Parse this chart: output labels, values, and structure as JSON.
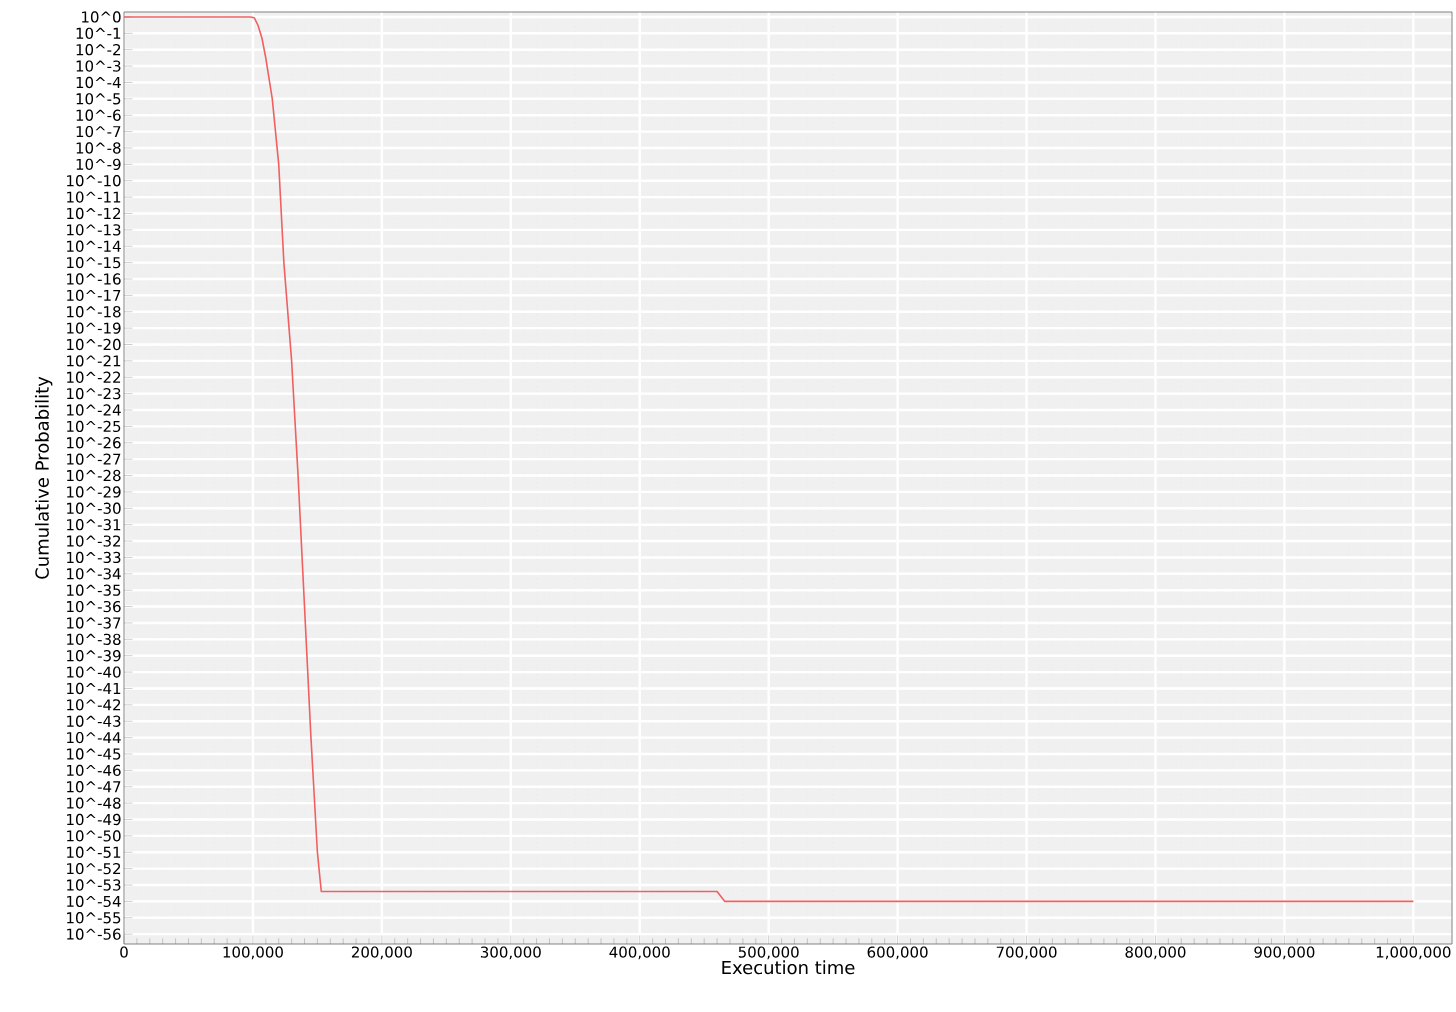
{
  "chart_data": {
    "type": "line",
    "xlabel": "Execution time",
    "ylabel": "Cumulative Probability",
    "log": "y",
    "grid": true,
    "marker": "none",
    "line_style": "solid",
    "xlim": [
      0,
      1030000
    ],
    "ylim": [
      2.5e-57,
      2
    ],
    "xticks": [
      0,
      {
        "value": 100000,
        "label": "100,000"
      },
      {
        "value": 200000,
        "label": "200,000"
      },
      {
        "value": 300000,
        "label": "300,000"
      },
      {
        "value": 400000,
        "label": "400,000"
      },
      {
        "value": 500000,
        "label": "500,000"
      },
      {
        "value": 600000,
        "label": "600,000"
      },
      {
        "value": 700000,
        "label": "700,000"
      },
      {
        "value": 800000,
        "label": "800,000"
      },
      {
        "value": 900000,
        "label": "900,000"
      },
      {
        "value": 1000000,
        "label": "1,000,000"
      }
    ],
    "yticks": [
      {
        "value": 1,
        "label": "10^0"
      },
      {
        "value": 0.1,
        "label": "10^-1"
      },
      {
        "value": 0.01,
        "label": "10^-2"
      },
      {
        "value": 0.001,
        "label": "10^-3"
      },
      {
        "value": 0.0001,
        "label": "10^-4"
      },
      {
        "value": 1e-05,
        "label": "10^-5"
      },
      {
        "value": 1e-06,
        "label": "10^-6"
      },
      {
        "value": 1e-07,
        "label": "10^-7"
      },
      {
        "value": 1e-08,
        "label": "10^-8"
      },
      {
        "value": 1e-09,
        "label": "10^-9"
      },
      {
        "value": 1e-10,
        "label": "10^-10"
      },
      {
        "value": 1e-11,
        "label": "10^-11"
      },
      {
        "value": 1e-12,
        "label": "10^-12"
      },
      {
        "value": 1e-13,
        "label": "10^-13"
      },
      {
        "value": 1e-14,
        "label": "10^-14"
      },
      {
        "value": 1e-15,
        "label": "10^-15"
      },
      {
        "value": 1e-16,
        "label": "10^-16"
      },
      {
        "value": 1e-17,
        "label": "10^-17"
      },
      {
        "value": 1e-18,
        "label": "10^-18"
      },
      {
        "value": 1e-19,
        "label": "10^-19"
      },
      {
        "value": 1e-20,
        "label": "10^-20"
      },
      {
        "value": 1e-21,
        "label": "10^-21"
      },
      {
        "value": 1e-22,
        "label": "10^-22"
      },
      {
        "value": 1e-23,
        "label": "10^-23"
      },
      {
        "value": 1e-24,
        "label": "10^-24"
      },
      {
        "value": 1e-25,
        "label": "10^-25"
      },
      {
        "value": 1e-26,
        "label": "10^-26"
      },
      {
        "value": 1e-27,
        "label": "10^-27"
      },
      {
        "value": 1e-28,
        "label": "10^-28"
      },
      {
        "value": 1e-29,
        "label": "10^-29"
      },
      {
        "value": 1e-30,
        "label": "10^-30"
      },
      {
        "value": 1e-31,
        "label": "10^-31"
      },
      {
        "value": 1e-32,
        "label": "10^-32"
      },
      {
        "value": 1e-33,
        "label": "10^-33"
      },
      {
        "value": 1e-34,
        "label": "10^-34"
      },
      {
        "value": 1e-35,
        "label": "10^-35"
      },
      {
        "value": 1e-36,
        "label": "10^-36"
      },
      {
        "value": 1e-37,
        "label": "10^-37"
      },
      {
        "value": 1e-38,
        "label": "10^-38"
      },
      {
        "value": 1e-39,
        "label": "10^-39"
      },
      {
        "value": 1e-40,
        "label": "10^-40"
      },
      {
        "value": 1e-41,
        "label": "10^-41"
      },
      {
        "value": 1e-42,
        "label": "10^-42"
      },
      {
        "value": 1e-43,
        "label": "10^-43"
      },
      {
        "value": 1e-44,
        "label": "10^-44"
      },
      {
        "value": 1e-45,
        "label": "10^-45"
      },
      {
        "value": 1e-46,
        "label": "10^-46"
      },
      {
        "value": 1e-47,
        "label": "10^-47"
      },
      {
        "value": 1e-48,
        "label": "10^-48"
      },
      {
        "value": 1e-49,
        "label": "10^-49"
      },
      {
        "value": 1e-50,
        "label": "10^-50"
      },
      {
        "value": 1e-51,
        "label": "10^-51"
      },
      {
        "value": 1e-52,
        "label": "10^-52"
      },
      {
        "value": 1e-53,
        "label": "10^-53"
      },
      {
        "value": 1e-54,
        "label": "10^-54"
      },
      {
        "value": 1e-55,
        "label": "10^-55"
      },
      {
        "value": 1e-56,
        "label": "10^-56"
      }
    ],
    "x": [
      0,
      98000,
      101000,
      104000,
      107000,
      110000,
      115000,
      120000,
      124000,
      130000,
      135000,
      140000,
      145000,
      150000,
      153000,
      460000,
      466000,
      1000000
    ],
    "series": [
      {
        "color": "#f06060",
        "values": [
          1,
          1,
          0.9,
          0.3,
          0.05,
          0.003,
          1e-05,
          1e-09,
          1e-15,
          1e-21,
          1e-28,
          1e-36,
          1e-44,
          1e-51,
          4e-54,
          4e-54,
          1e-54,
          1e-54
        ]
      }
    ]
  }
}
